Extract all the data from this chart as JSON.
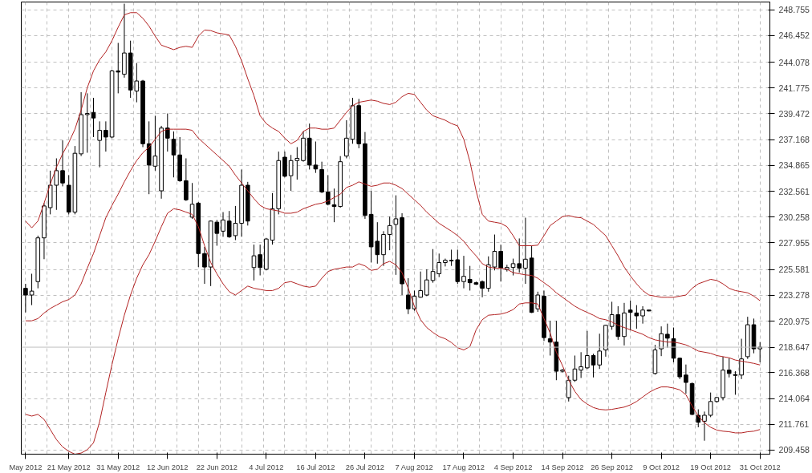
{
  "chart_data": {
    "type": "candlestick",
    "categories": [
      "May 2012",
      null,
      null,
      null,
      null,
      null,
      null,
      "21 May 2012",
      null,
      null,
      null,
      null,
      null,
      null,
      null,
      "31 May 2012",
      null,
      null,
      null,
      null,
      null,
      null,
      null,
      "12 Jun 2012",
      null,
      null,
      null,
      null,
      null,
      null,
      null,
      "22 Jun 2012",
      null,
      null,
      null,
      null,
      null,
      null,
      null,
      "4 Jul 2012",
      null,
      null,
      null,
      null,
      null,
      null,
      null,
      "16 Jul 2012",
      null,
      null,
      null,
      null,
      null,
      null,
      null,
      "26 Jul 2012",
      null,
      null,
      null,
      null,
      null,
      null,
      null,
      "7 Aug 2012",
      null,
      null,
      null,
      null,
      null,
      null,
      null,
      "17 Aug 2012",
      null,
      null,
      null,
      null,
      null,
      null,
      null,
      "4 Sep 2012",
      null,
      null,
      null,
      null,
      null,
      null,
      null,
      "14 Sep 2012",
      null,
      null,
      null,
      null,
      null,
      null,
      null,
      "26 Sep 2012",
      null,
      null,
      null,
      null,
      null,
      null,
      null,
      "9 Oct 2012",
      null,
      null,
      null,
      null,
      null,
      null,
      null,
      "19 Oct 2012",
      null,
      null,
      null,
      null,
      null,
      null,
      null,
      "31 Oct 2012"
    ],
    "ohlc": [
      [
        223.9,
        224.3,
        221.75,
        223.3
      ],
      [
        223.3,
        225.2,
        222.4,
        223.65
      ],
      [
        224.5,
        228.6,
        223.9,
        228.4
      ],
      [
        228.4,
        231.5,
        226.5,
        231.25
      ],
      [
        231.1,
        234.4,
        230.5,
        233.1
      ],
      [
        233.1,
        235.5,
        230.9,
        234.4
      ],
      [
        234.4,
        237.1,
        233.0,
        233.3
      ],
      [
        233.1,
        234.0,
        230.5,
        230.7
      ],
      [
        230.7,
        236.6,
        230.5,
        235.95
      ],
      [
        235.9,
        241.4,
        235.7,
        239.4
      ],
      [
        239.4,
        241.3,
        236.0,
        239.5
      ],
      [
        239.6,
        240.9,
        237.4,
        239.1
      ],
      [
        237.1,
        238.8,
        234.7,
        238.0
      ],
      [
        238.0,
        238.8,
        236.1,
        237.4
      ],
      [
        237.4,
        243.4,
        237.3,
        243.3
      ],
      [
        243.3,
        245.8,
        241.3,
        243.2
      ],
      [
        243.0,
        249.3,
        242.7,
        244.9
      ],
      [
        244.9,
        246.0,
        240.9,
        241.6
      ],
      [
        241.5,
        244.0,
        240.5,
        242.4
      ],
      [
        242.4,
        242.5,
        236.5,
        236.8
      ],
      [
        236.8,
        238.8,
        232.3,
        234.9
      ],
      [
        234.8,
        239.3,
        234.4,
        235.7
      ],
      [
        232.6,
        238.4,
        231.9,
        238.2
      ],
      [
        238.2,
        239.5,
        236.1,
        237.3
      ],
      [
        237.2,
        237.9,
        233.8,
        235.8
      ],
      [
        235.8,
        237.4,
        233.4,
        233.5
      ],
      [
        233.5,
        235.5,
        231.7,
        231.8
      ],
      [
        230.25,
        233.3,
        230.1,
        231.4
      ],
      [
        231.5,
        231.6,
        225.8,
        227.0
      ],
      [
        227.0,
        227.6,
        224.3,
        225.8
      ],
      [
        225.8,
        229.95,
        224.1,
        229.9
      ],
      [
        229.8,
        230.0,
        227.7,
        228.8
      ],
      [
        229.0,
        230.7,
        228.5,
        230.0
      ],
      [
        229.9,
        230.8,
        228.4,
        228.5
      ],
      [
        228.6,
        231.25,
        228.2,
        229.7
      ],
      [
        229.7,
        234.5,
        228.5,
        233.1
      ],
      [
        233.1,
        233.4,
        229.5,
        229.9
      ],
      [
        225.75,
        227.8,
        224.6,
        226.8
      ],
      [
        226.9,
        227.8,
        225.05,
        225.75
      ],
      [
        225.6,
        228.4,
        225.5,
        228.3
      ],
      [
        228.2,
        232.4,
        227.8,
        231.0
      ],
      [
        231.0,
        236.1,
        230.5,
        235.3
      ],
      [
        235.6,
        236.1,
        233.8,
        233.9
      ],
      [
        233.95,
        235.8,
        232.6,
        235.3
      ],
      [
        235.3,
        236.5,
        233.6,
        235.5
      ],
      [
        235.3,
        237.9,
        235.2,
        237.3
      ],
      [
        237.3,
        238.6,
        234.5,
        234.9
      ],
      [
        234.9,
        237.0,
        234.2,
        234.55
      ],
      [
        234.5,
        235.2,
        232.4,
        232.5
      ],
      [
        232.5,
        234.0,
        231.3,
        231.4
      ],
      [
        231.35,
        232.8,
        229.8,
        231.2
      ],
      [
        231.2,
        235.7,
        231.1,
        235.2
      ],
      [
        235.7,
        238.9,
        235.5,
        237.3
      ],
      [
        237.2,
        240.9,
        236.8,
        240.2
      ],
      [
        240.2,
        240.8,
        236.4,
        236.8
      ],
      [
        236.8,
        237.85,
        230.1,
        230.4
      ],
      [
        230.5,
        232.6,
        226.2,
        227.6
      ],
      [
        228.1,
        229.8,
        226.1,
        226.9
      ],
      [
        226.9,
        229.0,
        225.9,
        228.7
      ],
      [
        228.7,
        230.3,
        227.3,
        229.5
      ],
      [
        229.6,
        232.2,
        225.1,
        230.1
      ],
      [
        230.2,
        230.6,
        223.3,
        224.3
      ],
      [
        223.3,
        224.8,
        221.6,
        222.07
      ],
      [
        222.07,
        223.7,
        221.9,
        223.2
      ],
      [
        223.1,
        225.4,
        223.07,
        223.7
      ],
      [
        223.3,
        225.6,
        223.2,
        224.65
      ],
      [
        224.6,
        227.4,
        224.4,
        225.4
      ],
      [
        225.2,
        227.0,
        224.9,
        226.2
      ],
      [
        226.2,
        226.55,
        225.85,
        226.4
      ],
      [
        226.4,
        227.35,
        225.9,
        226.35
      ],
      [
        226.45,
        227.35,
        224.3,
        224.5
      ],
      [
        224.5,
        226.8,
        223.9,
        224.97
      ],
      [
        224.7,
        225.9,
        223.7,
        224.4
      ],
      [
        224.4,
        224.5,
        224.2,
        224.26
      ],
      [
        224.5,
        224.6,
        223.1,
        223.9
      ],
      [
        223.9,
        226.75,
        223.6,
        226.0
      ],
      [
        225.8,
        228.7,
        225.5,
        227.2
      ],
      [
        227.2,
        227.8,
        224.5,
        225.7
      ],
      [
        225.58,
        226.0,
        225.4,
        225.76
      ],
      [
        225.76,
        226.55,
        225.05,
        226.1
      ],
      [
        226.1,
        228.35,
        225.3,
        225.7
      ],
      [
        225.7,
        230.2,
        224.3,
        226.5
      ],
      [
        226.6,
        227.7,
        221.7,
        221.75
      ],
      [
        222.07,
        223.6,
        221.8,
        223.3
      ],
      [
        223.2,
        223.7,
        219.2,
        219.5
      ],
      [
        219.4,
        221.0,
        217.9,
        219.1
      ],
      [
        219.1,
        221.0,
        215.7,
        216.5
      ],
      [
        216.5,
        216.7,
        216.4,
        216.6
      ],
      [
        214.15,
        216.1,
        213.8,
        215.7
      ],
      [
        215.7,
        217.9,
        215.55,
        216.7
      ],
      [
        216.6,
        218.2,
        215.9,
        216.9
      ],
      [
        216.8,
        220.1,
        216.7,
        217.9
      ],
      [
        217.9,
        218.06,
        215.95,
        217.06
      ],
      [
        217.06,
        219.85,
        216.7,
        218.3
      ],
      [
        218.4,
        220.65,
        217.8,
        220.6
      ],
      [
        220.5,
        222.7,
        220.2,
        221.55
      ],
      [
        221.55,
        222.3,
        219.3,
        219.6
      ],
      [
        219.6,
        222.6,
        218.8,
        221.7
      ],
      [
        221.96,
        222.81,
        220.17,
        221.75
      ],
      [
        221.7,
        222.4,
        220.3,
        221.44
      ],
      [
        221.44,
        222.3,
        220.75,
        221.96
      ],
      [
        221.96,
        221.97,
        221.85,
        221.88
      ],
      [
        216.3,
        218.85,
        216.2,
        218.4
      ],
      [
        218.5,
        220.5,
        217.85,
        219.85
      ],
      [
        219.8,
        220.75,
        218.6,
        219.45
      ],
      [
        219.4,
        220.4,
        217.3,
        217.66
      ],
      [
        217.66,
        217.7,
        215.8,
        216.0
      ],
      [
        216.16,
        217.1,
        214.5,
        215.5
      ],
      [
        215.4,
        215.5,
        212.57,
        212.65
      ],
      [
        212.57,
        213.1,
        211.5,
        211.94
      ],
      [
        212.04,
        212.9,
        210.3,
        212.57
      ],
      [
        212.57,
        214.6,
        212.4,
        213.8
      ],
      [
        213.8,
        214.2,
        213.7,
        214.15
      ],
      [
        214.15,
        217.8,
        213.9,
        216.6
      ],
      [
        216.6,
        217.66,
        215.95,
        216.3
      ],
      [
        216.2,
        216.5,
        214.4,
        216.13
      ],
      [
        216.16,
        219.4,
        215.8,
        217.6
      ],
      [
        217.8,
        221.36,
        217.6,
        220.65
      ],
      [
        220.65,
        221.2,
        218.1,
        218.5
      ],
      [
        218.5,
        219.1,
        217.3,
        218.65
      ]
    ],
    "series": [
      {
        "type": "line",
        "color": "#b22222",
        "values": [
          229.9,
          229.3,
          229.9,
          231.5,
          233.2,
          234.7,
          235.9,
          236.9,
          238.1,
          239.8,
          241.8,
          243.3,
          244.3,
          245.0,
          246.0,
          247.2,
          248.3,
          248.5,
          248.5,
          248.0,
          247.3,
          246.4,
          245.6,
          245.4,
          245.2,
          245.4,
          245.5,
          245.4,
          246.4,
          246.95,
          246.9,
          246.7,
          246.6,
          246.5,
          245.5,
          244.2,
          242.6,
          241.1,
          239.3,
          238.6,
          238.2,
          237.9,
          237.3,
          236.8,
          237.1,
          237.9,
          238.2,
          238.2,
          238.1,
          238.1,
          238.2,
          238.9,
          239.6,
          240.2,
          240.5,
          240.6,
          240.7,
          240.6,
          240.4,
          240.3,
          240.5,
          241.0,
          241.3,
          241.2,
          240.5,
          239.8,
          239.3,
          239.1,
          238.9,
          238.6,
          238.4,
          237.2,
          235.2,
          232.6,
          230.5,
          229.9,
          229.8,
          229.7,
          229.4,
          228.6,
          227.7,
          227.7,
          227.7,
          227.75,
          228.6,
          229.5,
          229.9,
          230.3,
          230.4,
          230.25,
          230.2,
          229.9,
          229.6,
          229.1,
          228.6,
          227.7,
          226.8,
          225.8,
          225.0,
          224.3,
          223.7,
          223.3,
          223.2,
          223.1,
          223.1,
          223.1,
          223.2,
          223.3,
          223.9,
          224.3,
          224.5,
          224.7,
          224.6,
          224.3,
          223.9,
          223.7,
          223.6,
          223.5,
          223.2,
          222.8
        ]
      },
      {
        "type": "line",
        "color": "#b22222",
        "values": [
          221.0,
          221.0,
          221.2,
          221.7,
          222.1,
          222.4,
          222.7,
          222.9,
          223.3,
          224.3,
          225.7,
          227.0,
          228.6,
          230.2,
          231.3,
          232.3,
          233.4,
          234.4,
          235.3,
          236.0,
          236.5,
          237.2,
          237.9,
          238.1,
          238.1,
          238.1,
          238.1,
          238.0,
          237.3,
          236.8,
          236.3,
          235.8,
          235.3,
          234.8,
          234.0,
          233.3,
          232.6,
          231.9,
          231.3,
          231.0,
          230.9,
          230.8,
          230.6,
          230.6,
          230.7,
          231.0,
          231.2,
          231.4,
          231.5,
          231.7,
          232.0,
          232.3,
          232.9,
          233.1,
          233.4,
          233.2,
          233.0,
          233.1,
          233.3,
          233.3,
          233.1,
          232.8,
          232.3,
          231.8,
          231.3,
          230.7,
          230.2,
          229.7,
          229.35,
          229.0,
          228.6,
          228.1,
          227.4,
          226.8,
          226.1,
          225.8,
          225.7,
          225.7,
          225.6,
          225.3,
          225.2,
          225.1,
          225.05,
          224.8,
          224.4,
          224.0,
          223.5,
          223.1,
          222.7,
          222.3,
          222.0,
          221.75,
          221.5,
          221.2,
          221.1,
          220.9,
          220.6,
          220.4,
          220.2,
          220.0,
          219.8,
          219.5,
          219.3,
          219.2,
          219.1,
          219.1,
          219.0,
          218.85,
          218.6,
          218.3,
          218.2,
          218.1,
          217.9,
          217.8,
          217.7,
          217.5,
          217.4,
          217.3,
          217.2,
          217.06
        ]
      },
      {
        "type": "line",
        "color": "#b22222",
        "values": [
          212.65,
          212.5,
          212.65,
          212.2,
          211.3,
          210.4,
          209.75,
          209.35,
          209.1,
          209.2,
          209.5,
          210.1,
          212.0,
          214.6,
          217.1,
          219.4,
          221.5,
          223.3,
          224.8,
          226.0,
          226.9,
          228.1,
          229.4,
          230.6,
          231.0,
          230.9,
          230.7,
          230.5,
          229.4,
          227.7,
          226.2,
          225.2,
          224.3,
          223.6,
          223.3,
          223.7,
          224.1,
          223.9,
          223.8,
          223.7,
          223.7,
          223.9,
          224.4,
          224.5,
          224.3,
          224.1,
          224.0,
          224.1,
          224.8,
          225.4,
          225.6,
          225.7,
          225.8,
          225.8,
          226.1,
          225.9,
          225.5,
          225.6,
          226.1,
          226.3,
          226.0,
          225.3,
          223.9,
          222.3,
          221.1,
          220.4,
          219.96,
          219.6,
          219.4,
          219.06,
          218.6,
          218.4,
          218.7,
          220.2,
          221.1,
          221.5,
          221.55,
          221.6,
          221.75,
          222.0,
          222.5,
          222.6,
          222.6,
          222.5,
          221.2,
          219.9,
          218.2,
          217.0,
          215.7,
          214.7,
          213.97,
          213.57,
          213.26,
          213.1,
          213.05,
          213.1,
          213.2,
          213.3,
          213.5,
          213.8,
          214.2,
          214.6,
          214.9,
          215.1,
          215.1,
          215.0,
          214.84,
          214.4,
          213.4,
          212.5,
          211.9,
          211.5,
          211.25,
          211.15,
          211.1,
          211.0,
          211.0,
          211.1,
          211.15,
          211.3
        ]
      }
    ],
    "ylim": [
      209.1,
      249.45
    ],
    "yticks": [
      248.755,
      246.452,
      244.078,
      241.775,
      239.472,
      237.168,
      234.865,
      232.561,
      230.258,
      227.955,
      225.581,
      223.278,
      220.975,
      216.368,
      214.064,
      211.761,
      209.458
    ],
    "ref_lines": [
      {
        "axis": "y",
        "value": 218.647,
        "label": "218.647",
        "color": "#c0c0c0"
      }
    ],
    "grid": true
  }
}
